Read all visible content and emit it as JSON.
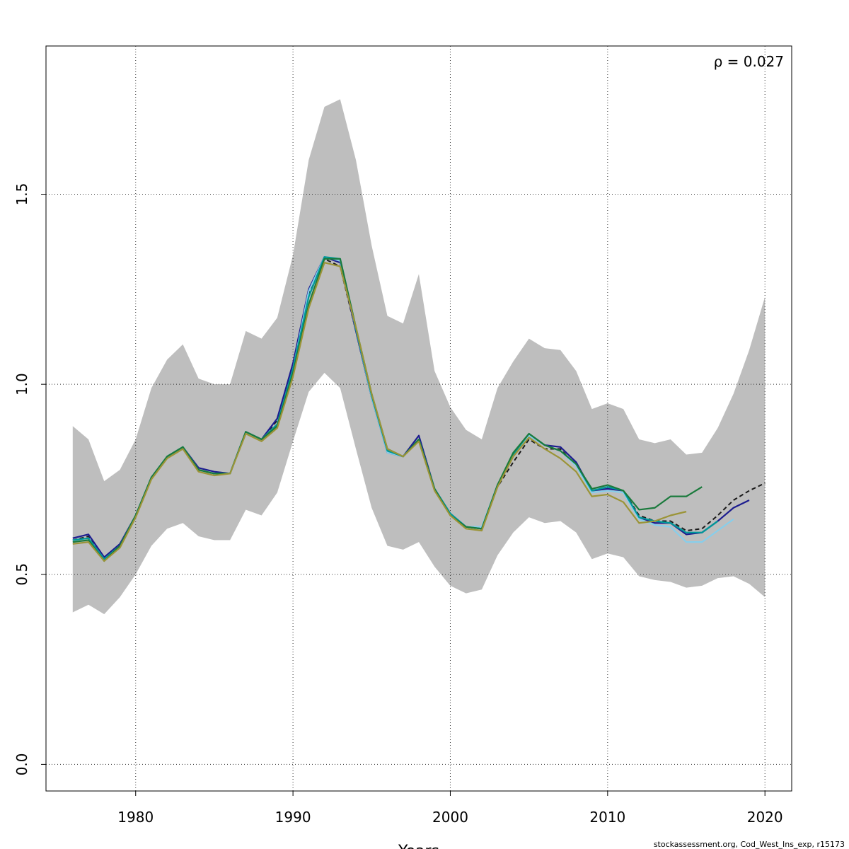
{
  "chart_data": {
    "type": "line",
    "title": "",
    "xlabel": "Years",
    "ylabel": "",
    "xlim": [
      1974.3,
      2021.7
    ],
    "ylim": [
      -0.07,
      1.89
    ],
    "xticks": [
      1980,
      1990,
      2000,
      2010,
      2020
    ],
    "yticks": [
      0.0,
      0.5,
      1.0,
      1.5
    ],
    "ytick_labels": [
      "0.0",
      "0.5",
      "1.0",
      "1.5"
    ],
    "grid": true,
    "annotation": "ρ = 0.027",
    "footer": "stockassessment.org, Cod_West_Ins_exp, r15173",
    "confidence_band": {
      "x": [
        1976,
        1977,
        1978,
        1979,
        1980,
        1981,
        1982,
        1983,
        1984,
        1985,
        1986,
        1987,
        1988,
        1989,
        1990,
        1991,
        1992,
        1993,
        1994,
        1995,
        1996,
        1997,
        1998,
        1999,
        2000,
        2001,
        2002,
        2003,
        2004,
        2005,
        2006,
        2007,
        2008,
        2009,
        2010,
        2011,
        2012,
        2013,
        2014,
        2015,
        2016,
        2017,
        2018,
        2019,
        2020
      ],
      "lower": [
        0.4,
        0.42,
        0.395,
        0.44,
        0.5,
        0.575,
        0.62,
        0.635,
        0.6,
        0.59,
        0.59,
        0.67,
        0.655,
        0.715,
        0.85,
        0.98,
        1.03,
        0.99,
        0.83,
        0.675,
        0.575,
        0.565,
        0.585,
        0.52,
        0.47,
        0.45,
        0.46,
        0.55,
        0.61,
        0.65,
        0.635,
        0.64,
        0.61,
        0.54,
        0.555,
        0.545,
        0.495,
        0.485,
        0.48,
        0.465,
        0.47,
        0.49,
        0.495,
        0.475,
        0.44
      ],
      "upper": [
        0.89,
        0.855,
        0.745,
        0.775,
        0.855,
        0.99,
        1.065,
        1.105,
        1.015,
        1.0,
        1.0,
        1.14,
        1.12,
        1.175,
        1.34,
        1.59,
        1.73,
        1.75,
        1.59,
        1.365,
        1.18,
        1.16,
        1.29,
        1.035,
        0.94,
        0.88,
        0.855,
        0.99,
        1.06,
        1.12,
        1.095,
        1.09,
        1.035,
        0.935,
        0.95,
        0.935,
        0.855,
        0.845,
        0.855,
        0.815,
        0.82,
        0.885,
        0.975,
        1.09,
        1.23
      ],
      "color": "#bebebe"
    },
    "series": [
      {
        "color": "#1a1a1a",
        "dashed": true,
        "x": [
          1976,
          1977,
          1978,
          1979,
          1980,
          1981,
          1982,
          1983,
          1984,
          1985,
          1986,
          1987,
          1988,
          1989,
          1990,
          1991,
          1992,
          1993,
          1994,
          1995,
          1996,
          1997,
          1998,
          1999,
          2000,
          2001,
          2002,
          2003,
          2004,
          2005,
          2006,
          2007,
          2008,
          2009,
          2010,
          2011,
          2012,
          2013,
          2014,
          2015,
          2016,
          2017,
          2018,
          2019,
          2020
        ],
        "values": [
          0.59,
          0.6,
          0.54,
          0.58,
          0.65,
          0.755,
          0.81,
          0.835,
          0.775,
          0.765,
          0.765,
          0.875,
          0.855,
          0.905,
          1.05,
          1.24,
          1.33,
          1.31,
          1.14,
          0.965,
          0.825,
          0.81,
          0.855,
          0.725,
          0.66,
          0.625,
          0.62,
          0.73,
          0.795,
          0.855,
          0.83,
          0.83,
          0.785,
          0.72,
          0.73,
          0.72,
          0.655,
          0.64,
          0.64,
          0.615,
          0.62,
          0.655,
          0.695,
          0.72,
          0.74
        ]
      },
      {
        "color": "#1c1c8f",
        "dashed": false,
        "x": [
          1976,
          1977,
          1978,
          1979,
          1980,
          1981,
          1982,
          1983,
          1984,
          1985,
          1986,
          1987,
          1988,
          1989,
          1990,
          1991,
          1992,
          1993,
          1994,
          1995,
          1996,
          1997,
          1998,
          1999,
          2000,
          2001,
          2002,
          2003,
          2004,
          2005,
          2006,
          2007,
          2008,
          2009,
          2010,
          2011,
          2012,
          2013,
          2014,
          2015,
          2016,
          2017,
          2018,
          2019
        ],
        "values": [
          0.595,
          0.605,
          0.545,
          0.58,
          0.655,
          0.755,
          0.81,
          0.835,
          0.78,
          0.77,
          0.765,
          0.875,
          0.855,
          0.91,
          1.055,
          1.25,
          1.335,
          1.32,
          1.14,
          0.965,
          0.82,
          0.81,
          0.865,
          0.725,
          0.66,
          0.625,
          0.62,
          0.735,
          0.81,
          0.865,
          0.84,
          0.835,
          0.795,
          0.72,
          0.725,
          0.72,
          0.65,
          0.635,
          0.635,
          0.605,
          0.61,
          0.64,
          0.675,
          0.695
        ]
      },
      {
        "color": "#87ceeb",
        "dashed": false,
        "x": [
          1976,
          1977,
          1978,
          1979,
          1980,
          1981,
          1982,
          1983,
          1984,
          1985,
          1986,
          1987,
          1988,
          1989,
          1990,
          1991,
          1992,
          1993,
          1994,
          1995,
          1996,
          1997,
          1998,
          1999,
          2000,
          2001,
          2002,
          2003,
          2004,
          2005,
          2006,
          2007,
          2008,
          2009,
          2010,
          2011,
          2012,
          2013,
          2014,
          2015,
          2016,
          2017,
          2018
        ],
        "values": [
          0.59,
          0.595,
          0.54,
          0.575,
          0.655,
          0.755,
          0.81,
          0.835,
          0.775,
          0.765,
          0.765,
          0.875,
          0.855,
          0.895,
          1.04,
          1.245,
          1.335,
          1.325,
          1.145,
          0.965,
          0.82,
          0.81,
          0.855,
          0.725,
          0.66,
          0.625,
          0.625,
          0.735,
          0.81,
          0.865,
          0.84,
          0.825,
          0.785,
          0.715,
          0.72,
          0.715,
          0.645,
          0.63,
          0.625,
          0.585,
          0.585,
          0.615,
          0.645
        ]
      },
      {
        "color": "#009999",
        "dashed": false,
        "x": [
          1976,
          1977,
          1978,
          1979,
          1980,
          1981,
          1982,
          1983,
          1984,
          1985,
          1986,
          1987,
          1988,
          1989,
          1990,
          1991,
          1992,
          1993,
          1994,
          1995,
          1996,
          1997,
          1998,
          1999,
          2000,
          2001,
          2002,
          2003,
          2004,
          2005,
          2006,
          2007,
          2008,
          2009,
          2010,
          2011,
          2012,
          2013,
          2014,
          2015,
          2016,
          2017
        ],
        "values": [
          0.59,
          0.595,
          0.54,
          0.575,
          0.655,
          0.755,
          0.81,
          0.835,
          0.775,
          0.765,
          0.765,
          0.875,
          0.855,
          0.895,
          1.04,
          1.23,
          1.335,
          1.33,
          1.145,
          0.97,
          0.825,
          0.81,
          0.855,
          0.725,
          0.66,
          0.625,
          0.62,
          0.735,
          0.815,
          0.87,
          0.84,
          0.825,
          0.79,
          0.72,
          0.73,
          0.72,
          0.65,
          0.64,
          0.635,
          0.61,
          0.61,
          0.64
        ]
      },
      {
        "color": "#1a7a3c",
        "dashed": false,
        "x": [
          1976,
          1977,
          1978,
          1979,
          1980,
          1981,
          1982,
          1983,
          1984,
          1985,
          1986,
          1987,
          1988,
          1989,
          1990,
          1991,
          1992,
          1993,
          1994,
          1995,
          1996,
          1997,
          1998,
          1999,
          2000,
          2001,
          2002,
          2003,
          2004,
          2005,
          2006,
          2007,
          2008,
          2009,
          2010,
          2011,
          2012,
          2013,
          2014,
          2015,
          2016
        ],
        "values": [
          0.585,
          0.59,
          0.535,
          0.575,
          0.655,
          0.755,
          0.81,
          0.835,
          0.775,
          0.765,
          0.765,
          0.875,
          0.855,
          0.89,
          1.03,
          1.21,
          1.33,
          1.33,
          1.15,
          0.975,
          0.83,
          0.81,
          0.855,
          0.725,
          0.655,
          0.625,
          0.62,
          0.735,
          0.82,
          0.87,
          0.84,
          0.825,
          0.79,
          0.725,
          0.735,
          0.72,
          0.67,
          0.675,
          0.705,
          0.705,
          0.73
        ]
      },
      {
        "color": "#9b9437",
        "dashed": false,
        "x": [
          1976,
          1977,
          1978,
          1979,
          1980,
          1981,
          1982,
          1983,
          1984,
          1985,
          1986,
          1987,
          1988,
          1989,
          1990,
          1991,
          1992,
          1993,
          1994,
          1995,
          1996,
          1997,
          1998,
          1999,
          2000,
          2001,
          2002,
          2003,
          2004,
          2005,
          2006,
          2007,
          2008,
          2009,
          2010,
          2011,
          2012,
          2013,
          2014,
          2015
        ],
        "values": [
          0.58,
          0.585,
          0.535,
          0.57,
          0.65,
          0.75,
          0.805,
          0.83,
          0.77,
          0.76,
          0.765,
          0.87,
          0.85,
          0.885,
          1.02,
          1.2,
          1.32,
          1.31,
          1.15,
          0.975,
          0.83,
          0.81,
          0.85,
          0.72,
          0.655,
          0.62,
          0.615,
          0.73,
          0.81,
          0.86,
          0.83,
          0.805,
          0.77,
          0.705,
          0.71,
          0.69,
          0.635,
          0.64,
          0.655,
          0.665
        ]
      }
    ]
  }
}
